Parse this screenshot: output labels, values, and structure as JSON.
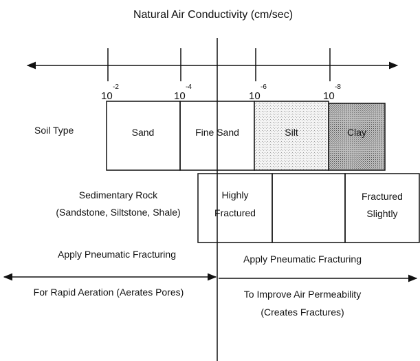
{
  "title": "Natural Air Conductivity (cm/sec)",
  "scale": {
    "ticks": [
      {
        "base": "10",
        "exponent": "-2"
      },
      {
        "base": "10",
        "exponent": "-4"
      },
      {
        "base": "10",
        "exponent": "-6"
      },
      {
        "base": "10",
        "exponent": "-8"
      }
    ]
  },
  "soil": {
    "label": "Soil Type",
    "cells": [
      "Sand",
      "Fine Sand",
      "Silt",
      "Clay"
    ]
  },
  "rock": {
    "label": [
      "Sedimentary Rock",
      "(Sandstone, Siltstone, Shale)"
    ],
    "cells": [
      [
        "Highly",
        "Fractured"
      ],
      [],
      [
        "Fractured",
        "Slightly"
      ]
    ]
  },
  "left": {
    "heading": "Apply Pneumatic Fracturing",
    "text": [
      "For Rapid Aeration (Aerates Pores)"
    ]
  },
  "right": {
    "heading": "Apply Pneumatic Fracturing",
    "text": [
      "To Improve Air Permeability",
      "(Creates Fractures)"
    ]
  }
}
